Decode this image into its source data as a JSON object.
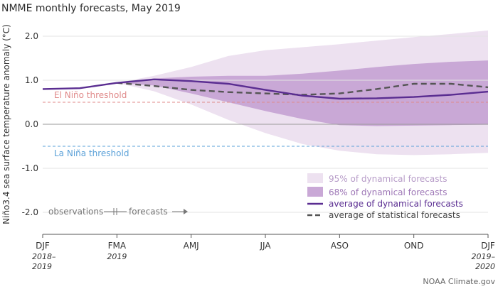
{
  "chart_data": {
    "type": "line",
    "title": "NMME monthly forecasts, May 2019",
    "ylabel": "Niño3.4 sea surface temperature anomaly (°C)",
    "ylim": [
      -2.5,
      2.5
    ],
    "yticks": [
      "2.0",
      "1.0",
      "0.0",
      "-1.0",
      "-2.0"
    ],
    "x_index": [
      0,
      1,
      2,
      3,
      4,
      5,
      6,
      7,
      8,
      9,
      10,
      11,
      12
    ],
    "x_tick_labels": [
      {
        "label": "DJF",
        "sub1": "2018–",
        "sub2": "2019",
        "index": 0
      },
      {
        "label": "FMA",
        "sub1": "2019",
        "sub2": "",
        "index": 2
      },
      {
        "label": "AMJ",
        "sub1": "",
        "sub2": "",
        "index": 4
      },
      {
        "label": "JJA",
        "sub1": "",
        "sub2": "",
        "index": 6
      },
      {
        "label": "ASO",
        "sub1": "",
        "sub2": "",
        "index": 8
      },
      {
        "label": "OND",
        "sub1": "",
        "sub2": "",
        "index": 10
      },
      {
        "label": "DJF",
        "sub1": "2019–",
        "sub2": "2020",
        "index": 12
      }
    ],
    "observations": {
      "x": [
        0,
        1,
        2
      ],
      "y": [
        0.8,
        0.82,
        0.94
      ]
    },
    "band95": {
      "x": [
        2,
        3,
        4,
        5,
        6,
        7,
        8,
        9,
        10,
        11,
        12
      ],
      "lower": [
        0.94,
        0.75,
        0.45,
        0.1,
        -0.2,
        -0.45,
        -0.6,
        -0.68,
        -0.7,
        -0.68,
        -0.65
      ],
      "upper": [
        0.94,
        1.1,
        1.3,
        1.55,
        1.68,
        1.75,
        1.82,
        1.9,
        1.98,
        2.05,
        2.13
      ]
    },
    "band68": {
      "x": [
        2,
        3,
        4,
        5,
        6,
        7,
        8,
        9,
        10,
        11,
        12
      ],
      "lower": [
        0.94,
        0.88,
        0.7,
        0.5,
        0.3,
        0.12,
        -0.02,
        -0.04,
        -0.03,
        -0.02,
        -0.01
      ],
      "upper": [
        0.94,
        1.04,
        1.08,
        1.1,
        1.1,
        1.15,
        1.22,
        1.3,
        1.37,
        1.42,
        1.45
      ]
    },
    "series": [
      {
        "name": "average of dynamical forecasts",
        "x": [
          2,
          3,
          4,
          5,
          6,
          7,
          8,
          9,
          10,
          11,
          12
        ],
        "values": [
          0.94,
          1.02,
          0.98,
          0.92,
          0.78,
          0.65,
          0.58,
          0.59,
          0.62,
          0.67,
          0.74
        ]
      },
      {
        "name": "average of statistical forecasts",
        "x": [
          2,
          3,
          4,
          5,
          6,
          7,
          8,
          9,
          10,
          11,
          12
        ],
        "values": [
          0.94,
          0.87,
          0.78,
          0.73,
          0.7,
          0.67,
          0.7,
          0.8,
          0.92,
          0.92,
          0.84
        ]
      }
    ],
    "thresholds": [
      {
        "label": "El Niño threshold",
        "value": 0.5,
        "color": "#e08a8a"
      },
      {
        "label": "La Niña threshold",
        "value": -0.5,
        "color": "#5aa0d8"
      }
    ],
    "legend": {
      "placement": "bottom-right",
      "entries": [
        {
          "label": "95% of dynamical forecasts",
          "color": "#ede1f0"
        },
        {
          "label": "68% of dynamical forecasts",
          "color": "#c9a8d6"
        },
        {
          "label": "average of dynamical forecasts",
          "color": "#5a2d91"
        },
        {
          "label": "average of statistical forecasts",
          "color": "#555555"
        }
      ]
    },
    "annotation": {
      "observations": "observations",
      "forecasts": "forecasts"
    },
    "credit": "NOAA Climate.gov"
  }
}
